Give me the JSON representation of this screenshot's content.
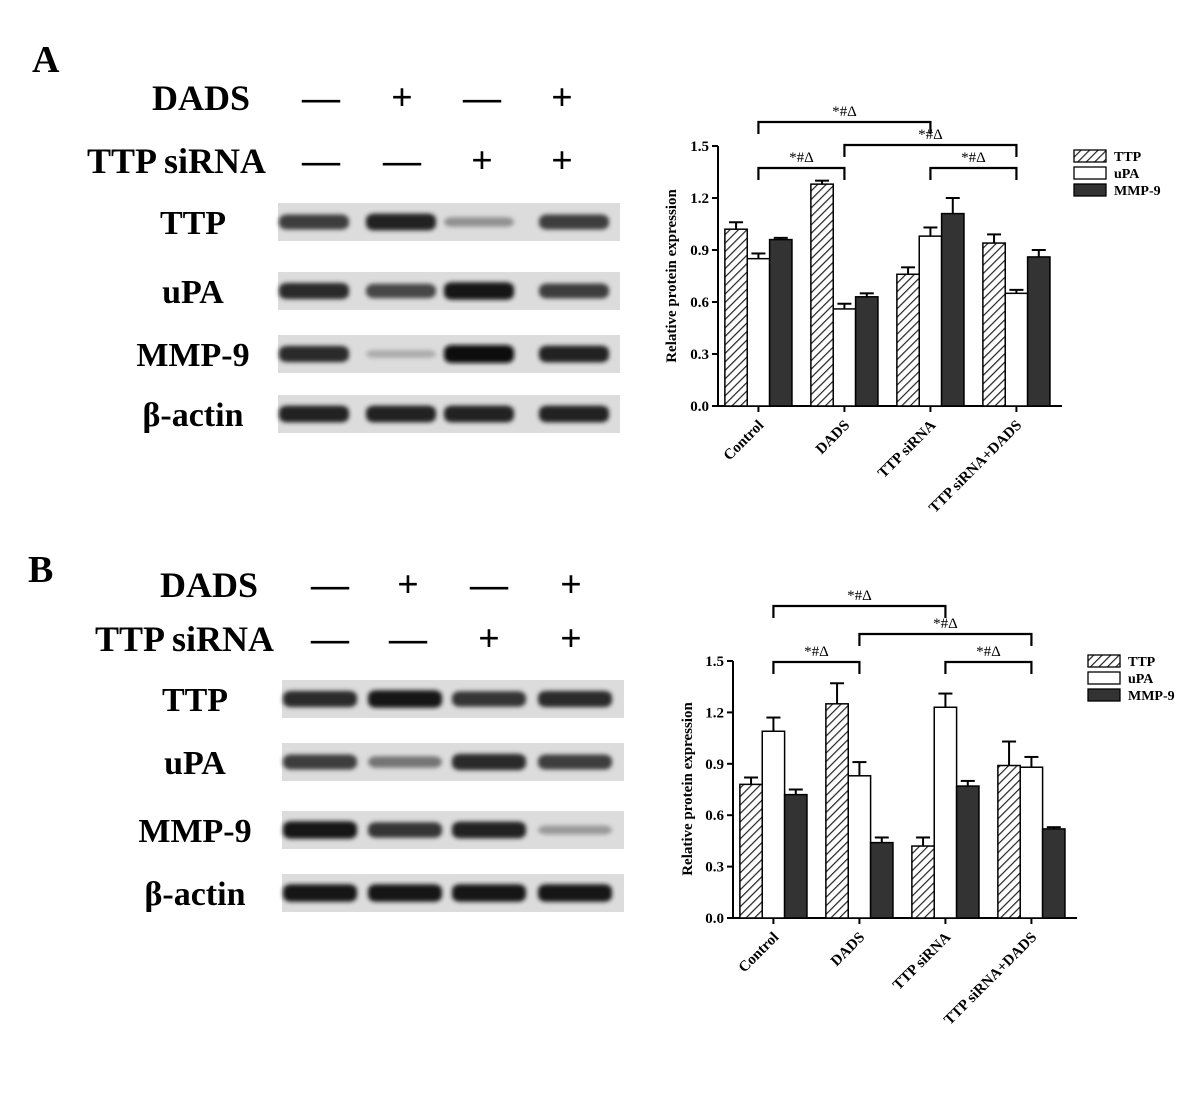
{
  "panels": [
    {
      "label": "A",
      "treatments": [
        {
          "name": "DADS",
          "signs": [
            "—",
            "+",
            "—",
            "+"
          ]
        },
        {
          "name": "TTP siRNA",
          "signs": [
            "—",
            "—",
            "+",
            "+"
          ]
        }
      ],
      "blot_rows": [
        {
          "label": "TTP",
          "intensity": [
            0.75,
            0.9,
            0.3,
            0.75
          ]
        },
        {
          "label": "uPA",
          "intensity": [
            0.85,
            0.7,
            0.95,
            0.75
          ]
        },
        {
          "label": "MMP-9",
          "intensity": [
            0.85,
            0.15,
            1.0,
            0.9
          ]
        },
        {
          "label": "β-actin",
          "intensity": [
            0.9,
            0.9,
            0.9,
            0.9
          ]
        }
      ]
    },
    {
      "label": "B",
      "treatments": [
        {
          "name": "DADS",
          "signs": [
            "—",
            "+",
            "—",
            "+"
          ]
        },
        {
          "name": "TTP siRNA",
          "signs": [
            "—",
            "—",
            "+",
            "+"
          ]
        }
      ],
      "blot_rows": [
        {
          "label": "TTP",
          "intensity": [
            0.85,
            0.95,
            0.8,
            0.85
          ]
        },
        {
          "label": "uPA",
          "intensity": [
            0.75,
            0.45,
            0.85,
            0.75
          ]
        },
        {
          "label": "MMP-9",
          "intensity": [
            0.95,
            0.8,
            0.9,
            0.25
          ]
        },
        {
          "label": "β-actin",
          "intensity": [
            0.95,
            0.95,
            0.95,
            0.95
          ]
        }
      ]
    }
  ],
  "chart_data": [
    {
      "type": "bar",
      "panel": "A",
      "title": "",
      "xlabel": "",
      "ylabel": "Relative protein expression",
      "ylim": [
        0,
        1.5
      ],
      "yticks": [
        "0.0",
        "0.3",
        "0.6",
        "0.9",
        "1.2",
        "1.5"
      ],
      "categories": [
        "Control",
        "DADS",
        "TTP siRNA",
        "TTP siRNA+DADS"
      ],
      "series": [
        {
          "name": "TTP",
          "fill": "hatched",
          "values": [
            1.02,
            1.28,
            0.76,
            0.94
          ],
          "errors": [
            0.04,
            0.02,
            0.04,
            0.05
          ]
        },
        {
          "name": "uPA",
          "fill": "white",
          "values": [
            0.85,
            0.56,
            0.98,
            0.65
          ],
          "errors": [
            0.03,
            0.03,
            0.05,
            0.02
          ]
        },
        {
          "name": "MMP-9",
          "fill": "dark",
          "values": [
            0.96,
            0.63,
            1.11,
            0.86
          ],
          "errors": [
            0.01,
            0.02,
            0.09,
            0.04
          ]
        }
      ],
      "legend": "top-right",
      "annotations": [
        {
          "text": "*#Δ",
          "from": 0,
          "to": 2,
          "level": 2
        },
        {
          "text": "*#Δ",
          "from": 1,
          "to": 3,
          "level": 1
        },
        {
          "text": "*#Δ",
          "from": 0,
          "to": 1,
          "level": 0
        },
        {
          "text": "*#Δ",
          "from": 2,
          "to": 3,
          "level": 0
        }
      ]
    },
    {
      "type": "bar",
      "panel": "B",
      "title": "",
      "xlabel": "",
      "ylabel": "Relative protein expression",
      "ylim": [
        0,
        1.5
      ],
      "yticks": [
        "0.0",
        "0.3",
        "0.6",
        "0.9",
        "1.2",
        "1.5"
      ],
      "categories": [
        "Control",
        "DADS",
        "TTP siRNA",
        "TTP siRNA+DADS"
      ],
      "series": [
        {
          "name": "TTP",
          "fill": "hatched",
          "values": [
            0.78,
            1.25,
            0.42,
            0.89
          ],
          "errors": [
            0.04,
            0.12,
            0.05,
            0.14
          ]
        },
        {
          "name": "uPA",
          "fill": "white",
          "values": [
            1.09,
            0.83,
            1.23,
            0.88
          ],
          "errors": [
            0.08,
            0.08,
            0.08,
            0.06
          ]
        },
        {
          "name": "MMP-9",
          "fill": "dark",
          "values": [
            0.72,
            0.44,
            0.77,
            0.52
          ],
          "errors": [
            0.03,
            0.03,
            0.03,
            0.01
          ]
        }
      ],
      "legend": "top-right",
      "annotations": [
        {
          "text": "*#Δ",
          "from": 0,
          "to": 2,
          "level": 2
        },
        {
          "text": "*#Δ",
          "from": 1,
          "to": 3,
          "level": 1
        },
        {
          "text": "*#Δ",
          "from": 0,
          "to": 1,
          "level": 0
        },
        {
          "text": "*#Δ",
          "from": 2,
          "to": 3,
          "level": 0
        }
      ]
    }
  ]
}
